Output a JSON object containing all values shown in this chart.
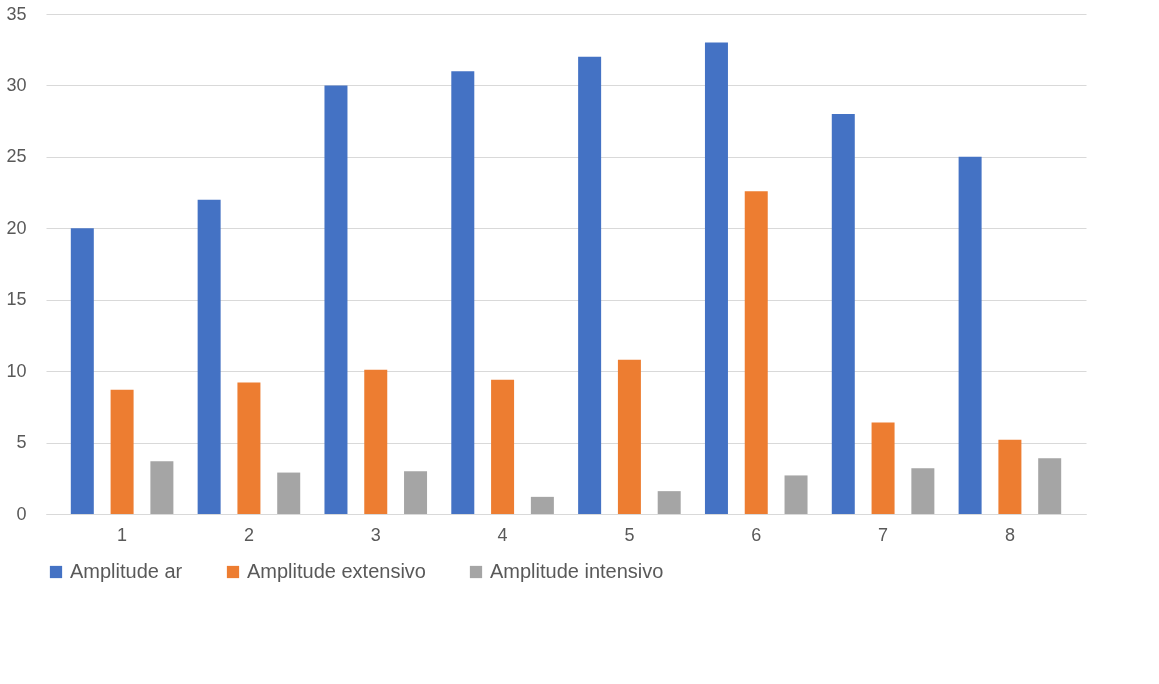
{
  "chart_data": {
    "type": "bar",
    "categories": [
      "1",
      "2",
      "3",
      "4",
      "5",
      "6",
      "7",
      "8"
    ],
    "series": [
      {
        "name": "Amplitude ar",
        "color": "#4472c4",
        "values": [
          20,
          22,
          30,
          31,
          32,
          33,
          28,
          25
        ]
      },
      {
        "name": "Amplitude extensivo",
        "color": "#ed7d31",
        "values": [
          8.7,
          9.2,
          10.1,
          9.4,
          10.8,
          22.6,
          6.4,
          5.2
        ]
      },
      {
        "name": "Amplitude intensivo",
        "color": "#a5a5a5",
        "values": [
          3.7,
          2.9,
          3.0,
          1.2,
          1.6,
          2.7,
          3.2,
          3.9
        ]
      }
    ],
    "ylim": [
      0,
      35
    ],
    "yticks": [
      0,
      5,
      10,
      15,
      20,
      25,
      30,
      35
    ],
    "grid": "y",
    "legend": "bottom"
  }
}
